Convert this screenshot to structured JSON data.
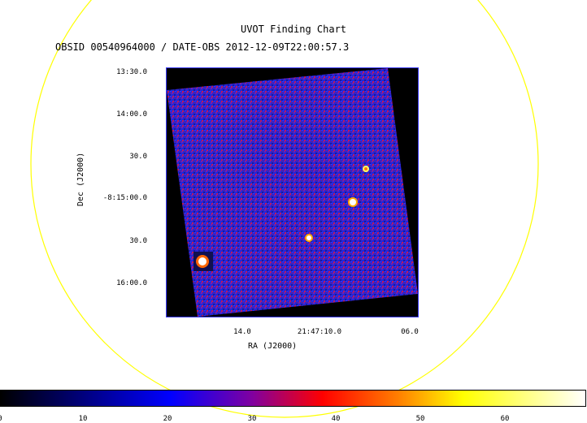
{
  "chart_data": {
    "type": "heatmap",
    "title": "UVOT Finding Chart",
    "subtitle": "OBSID 00540964000 / DATE-OBS 2012-12-09T22:00:57.3",
    "xlabel": "RA (J2000)",
    "ylabel": "Dec (J2000)",
    "x_ticks": [
      "14.0",
      "21:47:10.0",
      "06.0"
    ],
    "y_ticks": [
      "13:30.0",
      "14:00.0",
      "30.0",
      "-8:15:00.0",
      "30.0",
      "16:00.0"
    ],
    "colorbar": {
      "ticks": [
        "0",
        "10",
        "20",
        "30",
        "40",
        "50",
        "60"
      ],
      "range": [
        0,
        69
      ],
      "colormap": [
        "#000000",
        "#0000ff",
        "#ff0000",
        "#ffff00",
        "#ffffff"
      ]
    }
  },
  "colors": {
    "background": "#ffffff",
    "circle": "#ffff00",
    "image_noise_low": "#2222dd",
    "image_noise_high": "#cc1144",
    "frame_border": "#3b3bff"
  }
}
